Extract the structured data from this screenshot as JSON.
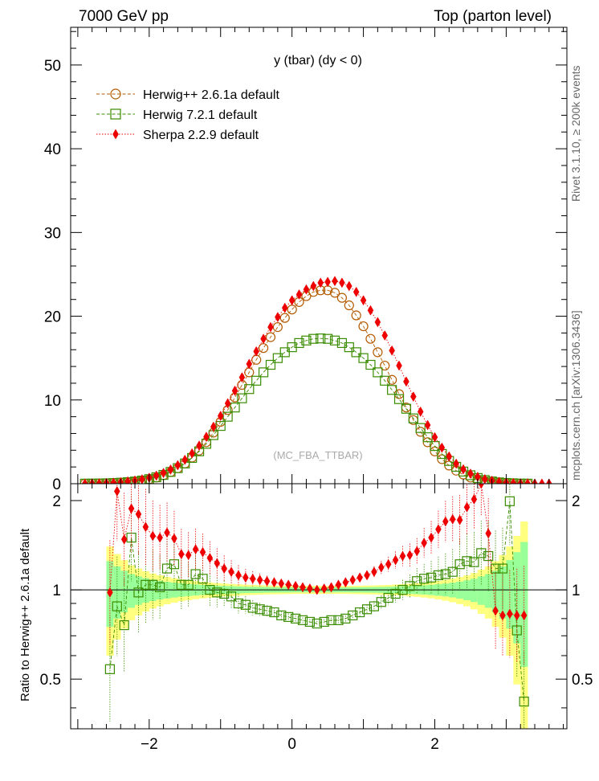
{
  "header": {
    "left": "7000 GeV pp",
    "right": "Top (parton level)"
  },
  "side": {
    "rivet": "Rivet 3.1.10, ≥ 200k events",
    "mcplots": "mcplots.cern.ch [arXiv:1306.3436]"
  },
  "chart_data": [
    {
      "type": "scatter",
      "title": "y (tbar) (dy < 0)",
      "watermark": "(MC_FBA_TTBAR)",
      "xlabel": "",
      "ylabel": "",
      "xlim": [
        -3.1,
        3.85
      ],
      "ylim": [
        0,
        54.5
      ],
      "yticks": [
        0,
        10,
        20,
        30,
        40,
        50
      ],
      "legend_position": "top-left",
      "series": [
        {
          "name": "Herwig++ 2.6.1a default",
          "marker": "open-circle",
          "color": "#b35a00",
          "x": [
            -2.9,
            -2.8,
            -2.7,
            -2.6,
            -2.5,
            -2.4,
            -2.3,
            -2.2,
            -2.1,
            -2.0,
            -1.9,
            -1.8,
            -1.7,
            -1.6,
            -1.5,
            -1.4,
            -1.3,
            -1.2,
            -1.1,
            -1.0,
            -0.9,
            -0.8,
            -0.7,
            -0.6,
            -0.5,
            -0.4,
            -0.3,
            -0.2,
            -0.1,
            0.0,
            0.1,
            0.2,
            0.3,
            0.4,
            0.5,
            0.6,
            0.7,
            0.8,
            0.9,
            1.0,
            1.1,
            1.2,
            1.3,
            1.4,
            1.5,
            1.6,
            1.7,
            1.8,
            1.9,
            2.0,
            2.1,
            2.2,
            2.3,
            2.4,
            2.5,
            2.6,
            2.7,
            2.8,
            2.9,
            3.0,
            3.1,
            3.2,
            3.3
          ],
          "y": [
            0.01,
            0.02,
            0.03,
            0.05,
            0.08,
            0.12,
            0.18,
            0.26,
            0.37,
            0.53,
            0.74,
            1.02,
            1.38,
            1.84,
            2.41,
            3.12,
            3.96,
            4.96,
            6.1,
            7.4,
            8.8,
            10.3,
            11.8,
            13.3,
            14.8,
            16.2,
            17.5,
            18.7,
            19.8,
            20.8,
            21.7,
            22.4,
            22.9,
            23.1,
            23.1,
            22.8,
            22.2,
            21.3,
            20.1,
            18.8,
            17.3,
            15.7,
            14.1,
            12.4,
            10.7,
            9.1,
            7.6,
            6.2,
            4.95,
            3.86,
            2.93,
            2.17,
            1.56,
            1.09,
            0.74,
            0.48,
            0.3,
            0.18,
            0.1,
            0.05,
            0.03,
            0.01,
            0.01
          ]
        },
        {
          "name": "Herwig 7.2.1 default",
          "marker": "open-square",
          "color": "#3a8c00",
          "x": [
            -2.9,
            -2.8,
            -2.7,
            -2.6,
            -2.5,
            -2.4,
            -2.3,
            -2.2,
            -2.1,
            -2.0,
            -1.9,
            -1.8,
            -1.7,
            -1.6,
            -1.5,
            -1.4,
            -1.3,
            -1.2,
            -1.1,
            -1.0,
            -0.9,
            -0.8,
            -0.7,
            -0.6,
            -0.5,
            -0.4,
            -0.3,
            -0.2,
            -0.1,
            0.0,
            0.1,
            0.2,
            0.3,
            0.4,
            0.5,
            0.6,
            0.7,
            0.8,
            0.9,
            1.0,
            1.1,
            1.2,
            1.3,
            1.4,
            1.5,
            1.6,
            1.7,
            1.8,
            1.9,
            2.0,
            2.1,
            2.2,
            2.3,
            2.4,
            2.5,
            2.6,
            2.7,
            2.8,
            2.9,
            3.0,
            3.1,
            3.2,
            3.3
          ],
          "y": [
            0.01,
            0.02,
            0.03,
            0.05,
            0.08,
            0.12,
            0.18,
            0.26,
            0.38,
            0.55,
            0.77,
            1.05,
            1.41,
            1.86,
            2.42,
            3.08,
            3.87,
            4.77,
            5.8,
            6.9,
            8.0,
            9.1,
            10.2,
            11.3,
            12.3,
            13.3,
            14.2,
            15.0,
            15.7,
            16.3,
            16.8,
            17.1,
            17.3,
            17.35,
            17.3,
            17.1,
            16.8,
            16.3,
            15.7,
            15.0,
            14.2,
            13.3,
            12.3,
            11.2,
            10.1,
            8.95,
            7.8,
            6.65,
            5.55,
            4.5,
            3.55,
            2.72,
            2.02,
            1.45,
            1.01,
            0.68,
            0.44,
            0.27,
            0.16,
            0.09,
            0.05,
            0.02,
            0.01
          ]
        },
        {
          "name": "Sherpa 2.2.9 default",
          "marker": "filled-diamond",
          "color": "#ee0000",
          "x": [
            -2.9,
            -2.8,
            -2.7,
            -2.6,
            -2.5,
            -2.4,
            -2.3,
            -2.2,
            -2.1,
            -2.0,
            -1.9,
            -1.8,
            -1.7,
            -1.6,
            -1.5,
            -1.4,
            -1.3,
            -1.2,
            -1.1,
            -1.0,
            -0.9,
            -0.8,
            -0.7,
            -0.6,
            -0.5,
            -0.4,
            -0.3,
            -0.2,
            -0.1,
            0.0,
            0.1,
            0.2,
            0.3,
            0.4,
            0.5,
            0.6,
            0.7,
            0.8,
            0.9,
            1.0,
            1.1,
            1.2,
            1.3,
            1.4,
            1.5,
            1.6,
            1.7,
            1.8,
            1.9,
            2.0,
            2.1,
            2.2,
            2.3,
            2.4,
            2.5,
            2.6,
            2.7,
            2.8,
            2.9,
            3.0,
            3.1,
            3.2,
            3.3,
            3.4,
            3.5,
            3.6
          ],
          "y": [
            0.01,
            0.03,
            0.05,
            0.08,
            0.12,
            0.18,
            0.27,
            0.38,
            0.52,
            0.71,
            0.96,
            1.28,
            1.69,
            2.21,
            2.85,
            3.62,
            4.55,
            5.6,
            6.8,
            8.1,
            9.6,
            11.1,
            12.7,
            14.3,
            15.8,
            17.3,
            18.7,
            19.9,
            21.0,
            21.9,
            22.6,
            23.2,
            23.6,
            24.0,
            24.1,
            24.2,
            24.0,
            23.6,
            22.9,
            21.9,
            20.7,
            19.3,
            17.7,
            15.9,
            14.1,
            12.2,
            10.4,
            8.6,
            7.0,
            5.55,
            4.3,
            3.25,
            2.39,
            1.72,
            1.2,
            0.82,
            0.54,
            0.35,
            0.22,
            0.13,
            0.08,
            0.05,
            0.03,
            0.02,
            0.01,
            0.01
          ]
        }
      ]
    },
    {
      "type": "scatter",
      "title": "",
      "xlabel": "",
      "ylabel": "Ratio to Herwig++ 2.6.1a default",
      "xlim": [
        -3.1,
        3.85
      ],
      "ylim": [
        0.34,
        2.28
      ],
      "xticks": [
        -2,
        0,
        2
      ],
      "yticks": [
        0.5,
        1,
        2
      ],
      "reference_line": 1,
      "bands": {
        "x_edges": [
          -2.6,
          -2.5,
          -2.4,
          -2.3,
          -2.2,
          -2.1,
          -2.0,
          -1.9,
          -1.8,
          -1.7,
          -1.6,
          -1.5,
          -1.4,
          -1.3,
          -1.2,
          -1.1,
          -1.0,
          -0.9,
          -0.8,
          -0.7,
          -0.6,
          -0.5,
          -0.4,
          -0.3,
          -0.2,
          -0.1,
          0.0,
          0.1,
          0.2,
          0.3,
          0.4,
          0.5,
          0.6,
          0.7,
          0.8,
          0.9,
          1.0,
          1.1,
          1.2,
          1.3,
          1.4,
          1.5,
          1.6,
          1.7,
          1.8,
          1.9,
          2.0,
          2.1,
          2.2,
          2.3,
          2.4,
          2.5,
          2.6,
          2.7,
          2.8,
          2.9,
          3.0,
          3.1,
          3.2,
          3.3
        ],
        "inner_halfwidth": [
          0.25,
          0.2,
          0.16,
          0.13,
          0.11,
          0.095,
          0.083,
          0.073,
          0.065,
          0.058,
          0.052,
          0.047,
          0.043,
          0.039,
          0.036,
          0.033,
          0.031,
          0.029,
          0.027,
          0.025,
          0.024,
          0.023,
          0.022,
          0.021,
          0.02,
          0.02,
          0.019,
          0.019,
          0.019,
          0.019,
          0.019,
          0.019,
          0.019,
          0.019,
          0.02,
          0.02,
          0.021,
          0.022,
          0.023,
          0.024,
          0.026,
          0.028,
          0.03,
          0.033,
          0.036,
          0.04,
          0.045,
          0.05,
          0.057,
          0.066,
          0.077,
          0.09,
          0.11,
          0.13,
          0.16,
          0.2,
          0.26,
          0.34,
          0.45
        ],
        "outer_halfwidth": [
          0.4,
          0.32,
          0.26,
          0.21,
          0.18,
          0.155,
          0.135,
          0.12,
          0.106,
          0.095,
          0.085,
          0.077,
          0.07,
          0.064,
          0.059,
          0.054,
          0.05,
          0.047,
          0.044,
          0.041,
          0.039,
          0.037,
          0.035,
          0.034,
          0.033,
          0.032,
          0.031,
          0.031,
          0.031,
          0.031,
          0.031,
          0.031,
          0.031,
          0.031,
          0.032,
          0.033,
          0.034,
          0.035,
          0.037,
          0.039,
          0.042,
          0.045,
          0.049,
          0.053,
          0.058,
          0.064,
          0.072,
          0.081,
          0.092,
          0.105,
          0.12,
          0.14,
          0.17,
          0.2,
          0.25,
          0.31,
          0.4,
          0.52,
          0.7
        ]
      },
      "series": [
        {
          "name": "Herwig 7.2.1 default",
          "marker": "open-square",
          "color": "#3a8c00",
          "x": [
            -2.55,
            -2.45,
            -2.35,
            -2.25,
            -2.15,
            -2.05,
            -1.95,
            -1.85,
            -1.75,
            -1.65,
            -1.55,
            -1.45,
            -1.35,
            -1.25,
            -1.15,
            -1.05,
            -0.95,
            -0.85,
            -0.75,
            -0.65,
            -0.55,
            -0.45,
            -0.35,
            -0.25,
            -0.15,
            -0.05,
            0.05,
            0.15,
            0.25,
            0.35,
            0.45,
            0.55,
            0.65,
            0.75,
            0.85,
            0.95,
            1.05,
            1.15,
            1.25,
            1.35,
            1.45,
            1.55,
            1.65,
            1.75,
            1.85,
            1.95,
            2.05,
            2.15,
            2.25,
            2.35,
            2.45,
            2.55,
            2.65,
            2.75,
            2.85,
            2.95,
            3.05,
            3.15,
            3.25
          ],
          "y": [
            0.54,
            0.88,
            0.76,
            1.5,
            0.98,
            1.04,
            1.04,
            1.02,
            1.18,
            1.22,
            1.04,
            1.04,
            1.13,
            1.09,
            1.0,
            0.98,
            0.97,
            0.95,
            0.9,
            0.89,
            0.87,
            0.86,
            0.85,
            0.84,
            0.82,
            0.81,
            0.8,
            0.79,
            0.78,
            0.77,
            0.78,
            0.79,
            0.79,
            0.8,
            0.82,
            0.84,
            0.86,
            0.88,
            0.91,
            0.94,
            0.97,
            1.0,
            1.03,
            1.07,
            1.09,
            1.1,
            1.12,
            1.13,
            1.15,
            1.22,
            1.25,
            1.24,
            1.33,
            1.3,
            1.18,
            1.18,
            1.99,
            0.73,
            0.42
          ]
        },
        {
          "name": "Sherpa 2.2.9 default",
          "marker": "filled-diamond",
          "color": "#ee0000",
          "x": [
            -2.55,
            -2.45,
            -2.35,
            -2.25,
            -2.15,
            -2.05,
            -1.95,
            -1.85,
            -1.75,
            -1.65,
            -1.55,
            -1.45,
            -1.35,
            -1.25,
            -1.15,
            -1.05,
            -0.95,
            -0.85,
            -0.75,
            -0.65,
            -0.55,
            -0.45,
            -0.35,
            -0.25,
            -0.15,
            -0.05,
            0.05,
            0.15,
            0.25,
            0.35,
            0.45,
            0.55,
            0.65,
            0.75,
            0.85,
            0.95,
            1.05,
            1.15,
            1.25,
            1.35,
            1.45,
            1.55,
            1.65,
            1.75,
            1.85,
            1.95,
            2.05,
            2.15,
            2.25,
            2.35,
            2.45,
            2.55,
            2.65,
            2.75,
            2.85,
            2.95,
            3.05,
            3.15,
            3.25
          ],
          "y": [
            0.98,
            2.15,
            1.48,
            1.88,
            1.8,
            1.63,
            1.52,
            1.5,
            1.56,
            1.49,
            1.32,
            1.31,
            1.37,
            1.34,
            1.28,
            1.23,
            1.18,
            1.15,
            1.12,
            1.1,
            1.09,
            1.08,
            1.07,
            1.06,
            1.05,
            1.04,
            1.03,
            1.02,
            1.01,
            1.0,
            1.01,
            1.02,
            1.04,
            1.06,
            1.08,
            1.1,
            1.12,
            1.15,
            1.19,
            1.22,
            1.26,
            1.3,
            1.31,
            1.35,
            1.44,
            1.5,
            1.6,
            1.7,
            1.73,
            1.72,
            1.9,
            2.02,
            2.28,
            1.55,
            0.85,
            0.82,
            0.83,
            0.82,
            0.82
          ]
        }
      ]
    }
  ]
}
